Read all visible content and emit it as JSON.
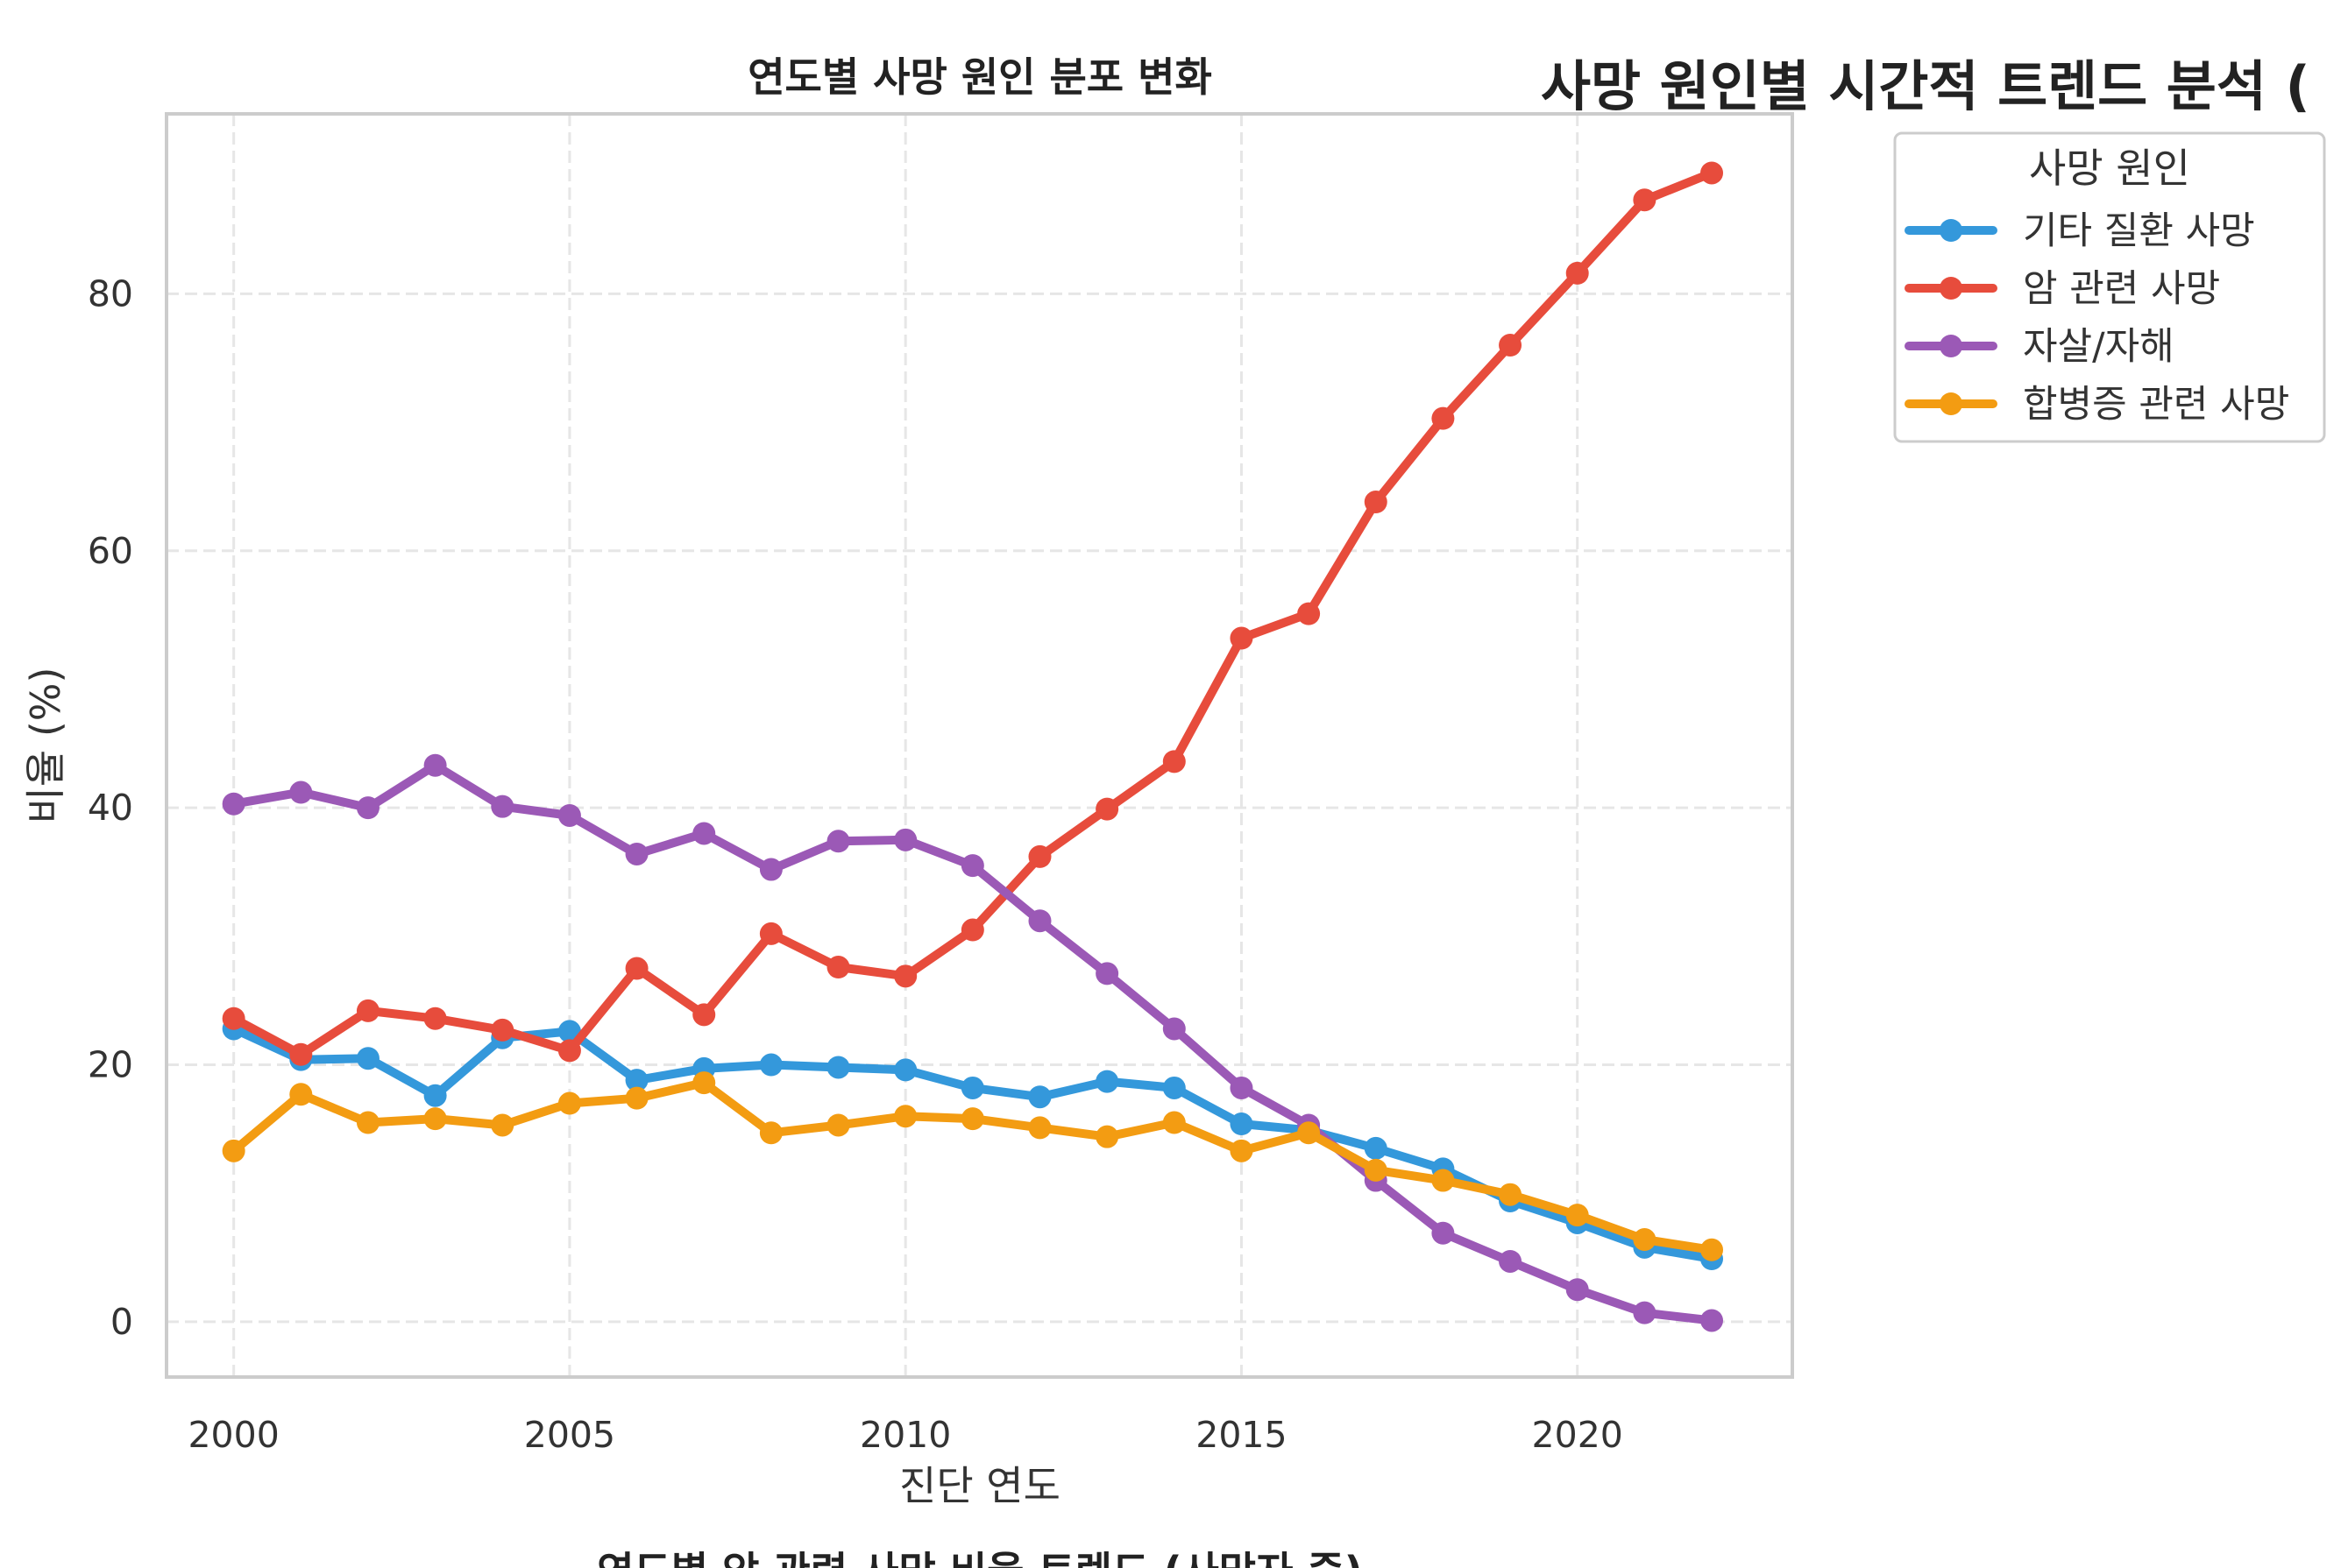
{
  "sup_title": "사망 원인별 시간적 트렌드 분석 (",
  "bottom_title": "연도별 암 관련 사망 비율 트렌드 (사망자 중)",
  "chart_data": {
    "type": "line",
    "title": "연도별 사망 원인 분포 변화",
    "xlabel": "진단 연도",
    "ylabel": "비율 (%)",
    "xlim": [
      1999,
      2023.2
    ],
    "ylim": [
      -4.3,
      94
    ],
    "xticks": [
      2000,
      2005,
      2010,
      2015,
      2020
    ],
    "yticks": [
      0,
      20,
      40,
      60,
      80
    ],
    "grid": true,
    "legend_title": "사망 원인",
    "legend_position": "outside-top-right",
    "x": [
      2000,
      2001,
      2002,
      2003,
      2004,
      2005,
      2006,
      2007,
      2008,
      2009,
      2010,
      2011,
      2012,
      2013,
      2014,
      2015,
      2016,
      2017,
      2018,
      2019,
      2020,
      2021,
      2022
    ],
    "series": [
      {
        "name": "기타 질환 사망",
        "color": "#3498db",
        "values": [
          22.8,
          20.4,
          20.5,
          17.6,
          22.1,
          22.6,
          18.8,
          19.7,
          20.0,
          19.8,
          19.6,
          18.2,
          17.5,
          18.7,
          18.2,
          15.4,
          14.9,
          13.5,
          11.9,
          9.4,
          7.7,
          5.8,
          4.9
        ]
      },
      {
        "name": "암 관련 사망",
        "color": "#e74c3c",
        "values": [
          23.6,
          20.8,
          24.2,
          23.6,
          22.7,
          21.1,
          27.5,
          23.9,
          30.2,
          27.6,
          26.9,
          30.5,
          36.2,
          39.9,
          43.6,
          53.2,
          55.1,
          63.8,
          70.3,
          76.0,
          81.6,
          87.3,
          89.4
        ]
      },
      {
        "name": "자살/자해",
        "color": "#9b59b6",
        "values": [
          40.3,
          41.2,
          40.0,
          43.3,
          40.1,
          39.4,
          36.4,
          38.0,
          35.2,
          37.4,
          37.5,
          35.5,
          31.2,
          27.1,
          22.8,
          18.2,
          15.3,
          11.0,
          6.9,
          4.7,
          2.5,
          0.7,
          0.1
        ]
      },
      {
        "name": "합병증 관련 사망",
        "color": "#f39c12",
        "values": [
          13.3,
          17.7,
          15.5,
          15.8,
          15.3,
          17.0,
          17.4,
          18.6,
          14.7,
          15.3,
          16.0,
          15.8,
          15.1,
          14.4,
          15.5,
          13.3,
          14.7,
          11.8,
          11.0,
          9.9,
          8.3,
          6.4,
          5.6
        ]
      }
    ]
  }
}
